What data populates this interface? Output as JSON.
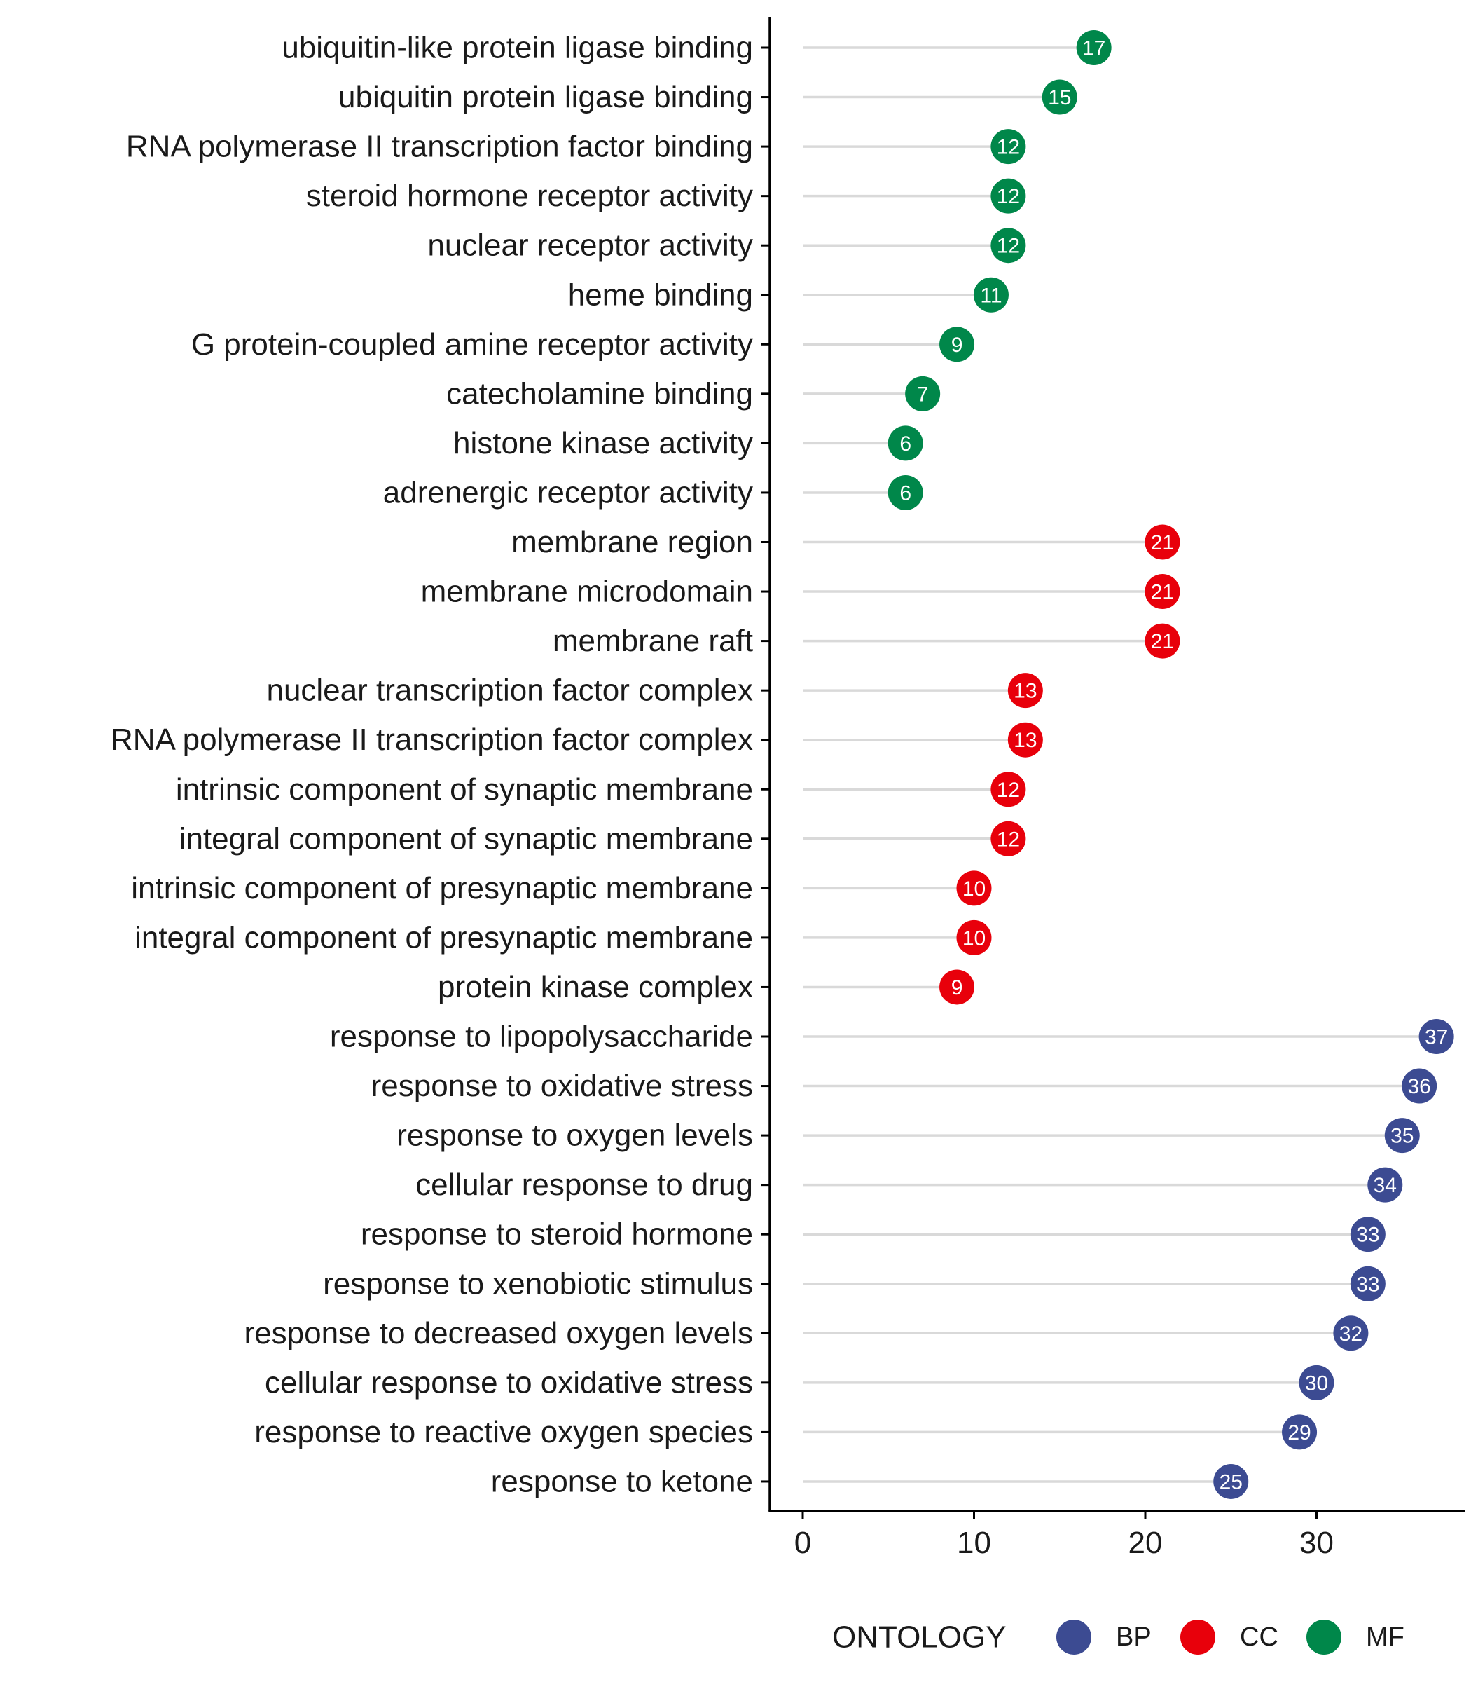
{
  "chart_data": {
    "type": "lollipop",
    "xlabel": "",
    "ylabel": "",
    "xlim": [
      0,
      37
    ],
    "xticks": [
      0,
      10,
      20,
      30
    ],
    "grid": false,
    "legend": {
      "title": "ONTOLOGY",
      "position": "bottom",
      "entries": [
        {
          "name": "BP",
          "color": "#3C4B92"
        },
        {
          "name": "CC",
          "color": "#E8000B"
        },
        {
          "name": "MF",
          "color": "#00874A"
        }
      ]
    },
    "points": [
      {
        "label": "ubiquitin-like protein ligase binding",
        "value": 17,
        "group": "MF"
      },
      {
        "label": "ubiquitin protein ligase binding",
        "value": 15,
        "group": "MF"
      },
      {
        "label": "RNA polymerase II transcription factor binding",
        "value": 12,
        "group": "MF"
      },
      {
        "label": "steroid hormone receptor activity",
        "value": 12,
        "group": "MF"
      },
      {
        "label": "nuclear receptor activity",
        "value": 12,
        "group": "MF"
      },
      {
        "label": "heme binding",
        "value": 11,
        "group": "MF"
      },
      {
        "label": "G protein-coupled amine receptor activity",
        "value": 9,
        "group": "MF"
      },
      {
        "label": "catecholamine binding",
        "value": 7,
        "group": "MF"
      },
      {
        "label": "histone kinase activity",
        "value": 6,
        "group": "MF"
      },
      {
        "label": "adrenergic receptor activity",
        "value": 6,
        "group": "MF"
      },
      {
        "label": "membrane region",
        "value": 21,
        "group": "CC"
      },
      {
        "label": "membrane microdomain",
        "value": 21,
        "group": "CC"
      },
      {
        "label": "membrane raft",
        "value": 21,
        "group": "CC"
      },
      {
        "label": "nuclear transcription factor complex",
        "value": 13,
        "group": "CC"
      },
      {
        "label": "RNA polymerase II transcription factor complex",
        "value": 13,
        "group": "CC"
      },
      {
        "label": "intrinsic component of synaptic membrane",
        "value": 12,
        "group": "CC"
      },
      {
        "label": "integral component of synaptic membrane",
        "value": 12,
        "group": "CC"
      },
      {
        "label": "intrinsic component of presynaptic membrane",
        "value": 10,
        "group": "CC"
      },
      {
        "label": "integral component of presynaptic membrane",
        "value": 10,
        "group": "CC"
      },
      {
        "label": "protein kinase complex",
        "value": 9,
        "group": "CC"
      },
      {
        "label": "response to lipopolysaccharide",
        "value": 37,
        "group": "BP"
      },
      {
        "label": "response to oxidative stress",
        "value": 36,
        "group": "BP"
      },
      {
        "label": "response to oxygen levels",
        "value": 35,
        "group": "BP"
      },
      {
        "label": "cellular response to drug",
        "value": 34,
        "group": "BP"
      },
      {
        "label": "response to steroid hormone",
        "value": 33,
        "group": "BP"
      },
      {
        "label": "response to xenobiotic stimulus",
        "value": 33,
        "group": "BP"
      },
      {
        "label": "response to decreased oxygen levels",
        "value": 32,
        "group": "BP"
      },
      {
        "label": "cellular response to oxidative stress",
        "value": 30,
        "group": "BP"
      },
      {
        "label": "response to reactive oxygen species",
        "value": 29,
        "group": "BP"
      },
      {
        "label": "response to ketone",
        "value": 25,
        "group": "BP"
      }
    ],
    "stem_color": "#D9D9D9"
  }
}
